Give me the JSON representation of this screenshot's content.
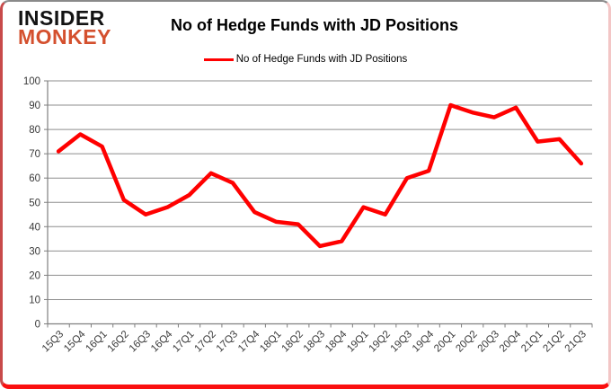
{
  "logo": {
    "line1": "INSIDER",
    "line2": "MONKEY",
    "accent_color": "#d4502e"
  },
  "header": {
    "title": "No of Hedge Funds with JD Positions"
  },
  "legend": {
    "label": "No of Hedge Funds with JD Positions",
    "swatch_color": "#ff0000"
  },
  "chart_data": {
    "type": "line",
    "title": "No of Hedge Funds with JD Positions",
    "series": [
      {
        "name": "No of Hedge Funds with JD Positions",
        "color": "#ff0000",
        "values": [
          71,
          78,
          73,
          51,
          45,
          48,
          53,
          62,
          58,
          46,
          42,
          41,
          32,
          34,
          48,
          45,
          60,
          63,
          90,
          87,
          85,
          89,
          75,
          76,
          66
        ]
      }
    ],
    "categories": [
      "15Q3",
      "15Q4",
      "16Q1",
      "16Q2",
      "16Q3",
      "16Q4",
      "17Q1",
      "17Q2",
      "17Q3",
      "17Q4",
      "18Q1",
      "18Q2",
      "18Q3",
      "18Q4",
      "19Q1",
      "19Q2",
      "19Q3",
      "19Q4",
      "20Q1",
      "20Q2",
      "20Q3",
      "20Q4",
      "21Q1",
      "21Q2",
      "21Q3"
    ],
    "xlabel": "",
    "ylabel": "",
    "ylim": [
      0,
      100
    ],
    "ytick_step": 10,
    "grid": true,
    "legend_position": "top",
    "grid_color": "#8e8e8e",
    "axis_color": "#7f7f7f",
    "tick_label_color": "#3a3a3a"
  }
}
